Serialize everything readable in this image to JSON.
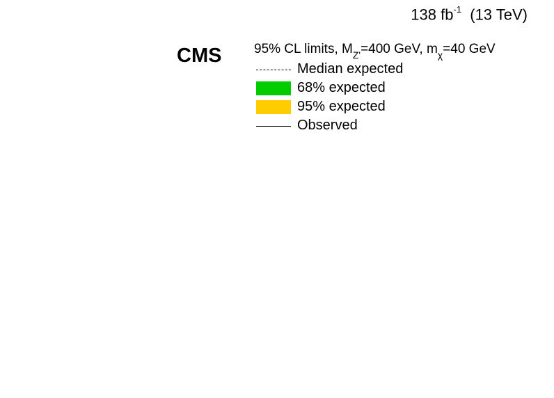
{
  "lumi_label": {
    "value": "138 fb",
    "exponent": "-1",
    "energy": "(13 TeV)"
  },
  "experiment": "CMS",
  "legend": {
    "header": {
      "prefix": "95% CL limits, M",
      "mz_sub": "Z'",
      "middle": "=400 GeV, m",
      "mx_sub": "χ",
      "suffix": "=40 GeV"
    },
    "entries": [
      {
        "label": "Median expected",
        "style": "dashed",
        "color": "#000000"
      },
      {
        "label": "68% expected",
        "style": "fill",
        "color": "#00cc00"
      },
      {
        "label": "95% expected",
        "style": "fill",
        "color": "#ffcc00"
      },
      {
        "label": "Observed",
        "style": "solid",
        "color": "#000000"
      }
    ]
  },
  "chart_data": {
    "type": "line",
    "series": [
      {
        "name": "Median expected",
        "values": []
      },
      {
        "name": "68% expected",
        "values": []
      },
      {
        "name": "95% expected",
        "values": []
      },
      {
        "name": "Observed",
        "values": []
      }
    ],
    "legend_position": "top-right"
  }
}
